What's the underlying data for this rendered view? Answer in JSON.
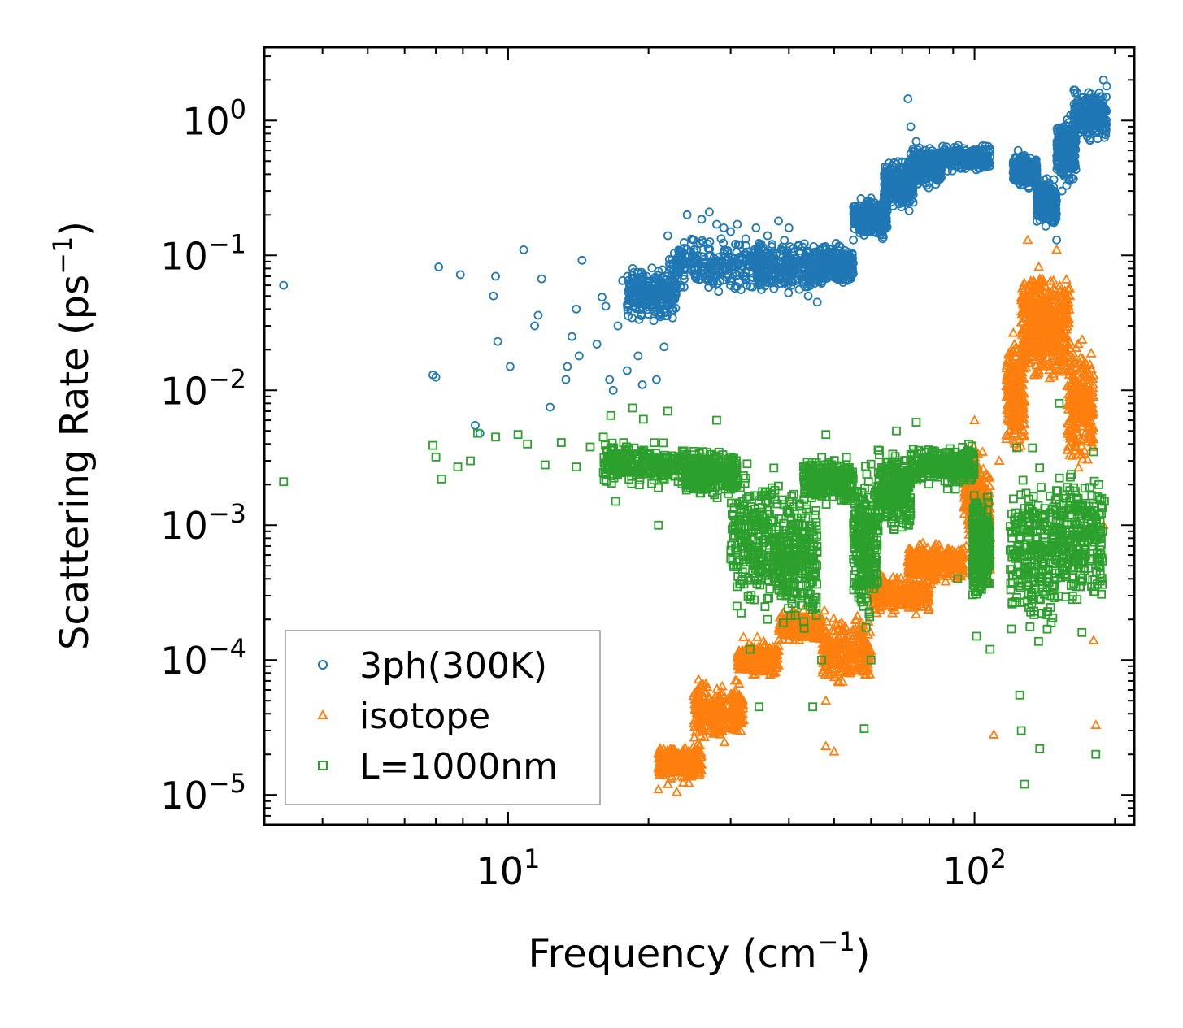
{
  "chart_data": {
    "type": "scatter",
    "xscale": "log",
    "yscale": "log",
    "xlim": [
      3.0,
      220.0
    ],
    "ylim": [
      6e-06,
      3.5
    ],
    "xlabel": {
      "main": "Frequency (cm",
      "exp": "−1",
      "close": ")"
    },
    "ylabel": {
      "main": "Scattering Rate (ps",
      "exp": "−1",
      "close": ")"
    },
    "xticks": [
      {
        "value": 10,
        "base": "10",
        "exp": "1"
      },
      {
        "value": 100,
        "base": "10",
        "exp": "2"
      }
    ],
    "yticks": [
      {
        "value": 1,
        "base": "10",
        "exp": "0"
      },
      {
        "value": 0.1,
        "base": "10",
        "exp": "−1"
      },
      {
        "value": 0.01,
        "base": "10",
        "exp": "−2"
      },
      {
        "value": 0.001,
        "base": "10",
        "exp": "−3"
      },
      {
        "value": 0.0001,
        "base": "10",
        "exp": "−4"
      },
      {
        "value": 1e-05,
        "base": "10",
        "exp": "−5"
      }
    ],
    "legend_position": "lower-left",
    "series": [
      {
        "name": "3ph(300K)",
        "marker": "circle",
        "color": "#1f77b4",
        "points": [
          [
            3.3,
            0.06
          ],
          [
            6.9,
            0.013
          ],
          [
            7.0,
            0.0125
          ],
          [
            7.1,
            0.082
          ],
          [
            7.9,
            0.072
          ],
          [
            8.5,
            0.0055
          ],
          [
            8.7,
            0.0048
          ],
          [
            9.3,
            0.05
          ],
          [
            9.4,
            0.07
          ],
          [
            9.5,
            0.023
          ],
          [
            10.1,
            0.015
          ],
          [
            10.8,
            0.11
          ],
          [
            11.4,
            0.03
          ],
          [
            11.6,
            0.036
          ],
          [
            11.8,
            0.067
          ],
          [
            12.3,
            0.0075
          ],
          [
            13.3,
            0.012
          ],
          [
            13.4,
            0.015
          ],
          [
            13.7,
            0.025
          ],
          [
            14.0,
            0.04
          ],
          [
            14.2,
            0.018
          ],
          [
            14.4,
            0.092
          ],
          [
            15.5,
            0.022
          ],
          [
            15.9,
            0.049
          ],
          [
            16.2,
            0.042
          ],
          [
            16.5,
            0.012
          ],
          [
            16.8,
            0.01
          ],
          [
            17.2,
            0.03
          ],
          [
            17.6,
            0.065
          ],
          [
            18.0,
            0.014
          ],
          [
            18.5,
            0.08
          ],
          [
            19.0,
            0.018
          ],
          [
            19.4,
            0.011
          ],
          [
            19.8,
            0.07
          ],
          [
            20.4,
            0.04
          ],
          [
            20.8,
            0.012
          ],
          [
            21.2,
            0.035
          ],
          [
            21.6,
            0.021
          ],
          [
            22.0,
            0.14
          ],
          [
            22.8,
            0.09
          ],
          [
            23.5,
            0.06
          ],
          [
            24.2,
            0.2
          ],
          [
            25.0,
            0.13
          ],
          [
            26.0,
            0.185
          ],
          [
            27.0,
            0.21
          ],
          [
            28.0,
            0.17
          ],
          [
            29.0,
            0.16
          ],
          [
            30.0,
            0.15
          ],
          [
            31.0,
            0.17
          ],
          [
            32.5,
            0.06
          ],
          [
            34.0,
            0.16
          ],
          [
            36.0,
            0.14
          ],
          [
            38.0,
            0.18
          ],
          [
            40.0,
            0.16
          ],
          [
            42.0,
            0.12
          ],
          [
            44.0,
            0.05
          ],
          [
            46.0,
            0.045
          ],
          [
            48.0,
            0.11
          ],
          [
            50.0,
            0.08
          ],
          [
            52.0,
            0.1
          ],
          [
            55.0,
            0.13
          ],
          [
            58.0,
            0.18
          ],
          [
            61.0,
            0.22
          ],
          [
            64.0,
            0.28
          ],
          [
            67.0,
            0.35
          ],
          [
            70.0,
            0.45
          ],
          [
            72.0,
            1.45
          ],
          [
            73.0,
            0.9
          ],
          [
            75.0,
            0.7
          ],
          [
            78.0,
            0.55
          ],
          [
            82.0,
            0.5
          ],
          [
            86.0,
            0.6
          ],
          [
            90.0,
            0.55
          ],
          [
            95.0,
            0.62
          ],
          [
            100.0,
            0.6
          ],
          [
            104.0,
            0.65
          ],
          [
            108.0,
            0.6
          ],
          [
            124.0,
            0.6
          ],
          [
            128.0,
            0.55
          ],
          [
            132.0,
            0.45
          ],
          [
            136.0,
            0.4
          ],
          [
            140.0,
            0.3
          ],
          [
            146.0,
            0.2
          ],
          [
            150.0,
            0.13
          ],
          [
            154.0,
            0.3
          ],
          [
            158.0,
            0.6
          ],
          [
            162.0,
            0.9
          ],
          [
            166.0,
            1.6
          ],
          [
            170.0,
            1.1
          ],
          [
            175.0,
            1.0
          ],
          [
            180.0,
            1.2
          ],
          [
            185.0,
            1.6
          ],
          [
            189.0,
            2.0
          ],
          [
            192.0,
            1.8
          ]
        ],
        "bands": [
          {
            "x": [
              18.0,
              23.0
            ],
            "y": [
              0.03,
              0.09
            ]
          },
          {
            "x": [
              22.0,
              35.0
            ],
            "y": [
              0.05,
              0.15
            ]
          },
          {
            "x": [
              34.0,
              46.0
            ],
            "y": [
              0.045,
              0.14
            ]
          },
          {
            "x": [
              46.0,
              55.0
            ],
            "y": [
              0.055,
              0.13
            ]
          },
          {
            "x": [
              55.0,
              65.0
            ],
            "y": [
              0.12,
              0.3
            ]
          },
          {
            "x": [
              64.0,
              74.0
            ],
            "y": [
              0.2,
              0.55
            ]
          },
          {
            "x": [
              72.0,
              85.0
            ],
            "y": [
              0.3,
              0.7
            ]
          },
          {
            "x": [
              85.0,
              108.0
            ],
            "y": [
              0.4,
              0.68
            ]
          },
          {
            "x": [
              121.0,
              136.0
            ],
            "y": [
              0.3,
              0.6
            ]
          },
          {
            "x": [
              136.0,
              150.0
            ],
            "y": [
              0.15,
              0.4
            ]
          },
          {
            "x": [
              150.0,
              165.0
            ],
            "y": [
              0.3,
              1.2
            ]
          },
          {
            "x": [
              163.0,
              192.0
            ],
            "y": [
              0.65,
              1.8
            ]
          }
        ]
      },
      {
        "name": "isotope",
        "marker": "triangle",
        "color": "#ff7f0e",
        "points": [
          [
            21.0,
            1.1e-05
          ],
          [
            22.0,
            1.2e-05
          ],
          [
            23.0,
            1.05e-05
          ],
          [
            24.0,
            1.5e-05
          ],
          [
            27.0,
            3e-05
          ],
          [
            33.0,
            0.00012
          ],
          [
            44.0,
            0.00015
          ],
          [
            48.0,
            2.3e-05
          ],
          [
            50.0,
            2.1e-05
          ],
          [
            48.0,
            5e-05
          ],
          [
            62.0,
            0.0003
          ],
          [
            80.0,
            0.00045
          ],
          [
            96.0,
            0.0007
          ],
          [
            100.0,
            0.006
          ],
          [
            104.0,
            0.0035
          ],
          [
            110.0,
            2.8e-05
          ],
          [
            113.0,
            0.003
          ],
          [
            118.0,
            0.012
          ],
          [
            130.0,
            0.13
          ],
          [
            138.0,
            0.06
          ],
          [
            150.0,
            0.11
          ],
          [
            160.0,
            0.05
          ],
          [
            172.0,
            0.01
          ],
          [
            180.0,
            0.00014
          ],
          [
            182.0,
            3.3e-05
          ],
          [
            189.0,
            0.001
          ]
        ],
        "bands": [
          {
            "x": [
              21.0,
              26.0
            ],
            "y": [
              1.2e-05,
              2.5e-05
            ]
          },
          {
            "x": [
              25.0,
              32.0
            ],
            "y": [
              2.2e-05,
              8e-05
            ]
          },
          {
            "x": [
              31.0,
              38.0
            ],
            "y": [
              7e-05,
              0.00015
            ]
          },
          {
            "x": [
              38.0,
              47.0
            ],
            "y": [
              0.00013,
              0.00025
            ]
          },
          {
            "x": [
              47.0,
              60.0
            ],
            "y": [
              6e-05,
              0.00025
            ]
          },
          {
            "x": [
              60.0,
              80.0
            ],
            "y": [
              0.0002,
              0.00045
            ]
          },
          {
            "x": [
              72.0,
              95.0
            ],
            "y": [
              0.00035,
              0.0008
            ]
          },
          {
            "x": [
              95.0,
              102.0
            ],
            "y": [
              0.0008,
              0.005
            ]
          },
          {
            "x": [
              102.0,
              108.0
            ],
            "y": [
              0.0003,
              0.003
            ]
          },
          {
            "x": [
              117.0,
              128.0
            ],
            "y": [
              0.003,
              0.03
            ]
          },
          {
            "x": [
              126.0,
              140.0
            ],
            "y": [
              0.01,
              0.1
            ]
          },
          {
            "x": [
              140.0,
              160.0
            ],
            "y": [
              0.01,
              0.09
            ]
          },
          {
            "x": [
              158.0,
              180.0
            ],
            "y": [
              0.002,
              0.03
            ]
          }
        ]
      },
      {
        "name": "L=1000nm",
        "marker": "square",
        "color": "#2ca02c",
        "points": [
          [
            3.3,
            0.0021
          ],
          [
            6.9,
            0.0039
          ],
          [
            7.0,
            0.0032
          ],
          [
            7.2,
            0.0022
          ],
          [
            7.8,
            0.0027
          ],
          [
            8.3,
            0.003
          ],
          [
            8.6,
            0.0048
          ],
          [
            9.4,
            0.0045
          ],
          [
            10.5,
            0.0047
          ],
          [
            11.0,
            0.004
          ],
          [
            12.0,
            0.0028
          ],
          [
            13.0,
            0.0041
          ],
          [
            14.0,
            0.0027
          ],
          [
            15.0,
            0.0038
          ],
          [
            16.0,
            0.0045
          ],
          [
            16.6,
            0.0065
          ],
          [
            17.0,
            0.0015
          ],
          [
            18.5,
            0.0074
          ],
          [
            19.5,
            0.0061
          ],
          [
            21.0,
            0.001
          ],
          [
            22.0,
            0.007
          ],
          [
            28.0,
            0.006
          ],
          [
            31.0,
            0.00035
          ],
          [
            33.0,
            0.00012
          ],
          [
            34.5,
            4.5e-05
          ],
          [
            36.0,
            0.0002
          ],
          [
            45.0,
            4.5e-05
          ],
          [
            47.0,
            0.0001
          ],
          [
            48.0,
            0.0047
          ],
          [
            58.0,
            3.1e-05
          ],
          [
            60.0,
            0.0001
          ],
          [
            68.0,
            0.005
          ],
          [
            75.0,
            0.0058
          ],
          [
            92.0,
            0.0004
          ],
          [
            101.0,
            0.00015
          ],
          [
            108.0,
            0.00012
          ],
          [
            120.0,
            0.00017
          ],
          [
            125.0,
            5.5e-05
          ],
          [
            126.0,
            3e-05
          ],
          [
            128.0,
            1.2e-05
          ],
          [
            138.0,
            2.2e-05
          ],
          [
            152.0,
            0.008
          ],
          [
            160.0,
            0.0006
          ],
          [
            170.0,
            0.00016
          ],
          [
            180.0,
            0.0035
          ],
          [
            182.0,
            2e-05
          ],
          [
            186.0,
            0.00049
          ],
          [
            188.0,
            0.0009
          ],
          [
            190.0,
            0.0015
          ]
        ],
        "bands": [
          {
            "x": [
              16.0,
              24.0
            ],
            "y": [
              0.0018,
              0.0045
            ]
          },
          {
            "x": [
              24.0,
              31.0
            ],
            "y": [
              0.0015,
              0.004
            ]
          },
          {
            "x": [
              30.0,
              38.0
            ],
            "y": [
              0.00016,
              0.0035
            ]
          },
          {
            "x": [
              38.0,
              46.0
            ],
            "y": [
              0.00014,
              0.0025
            ]
          },
          {
            "x": [
              43.0,
              55.0
            ],
            "y": [
              0.0013,
              0.0035
            ]
          },
          {
            "x": [
              55.0,
              62.0
            ],
            "y": [
              0.00014,
              0.0035
            ]
          },
          {
            "x": [
              62.0,
              73.0
            ],
            "y": [
              0.0008,
              0.004
            ]
          },
          {
            "x": [
              73.0,
              100.0
            ],
            "y": [
              0.0018,
              0.0042
            ]
          },
          {
            "x": [
              99.0,
              108.0
            ],
            "y": [
              0.00022,
              0.002
            ]
          },
          {
            "x": [
              119.0,
              150.0
            ],
            "y": [
              0.0001,
              0.004
            ]
          },
          {
            "x": [
              148.0,
              188.0
            ],
            "y": [
              0.0002,
              0.0035
            ]
          }
        ]
      }
    ]
  }
}
